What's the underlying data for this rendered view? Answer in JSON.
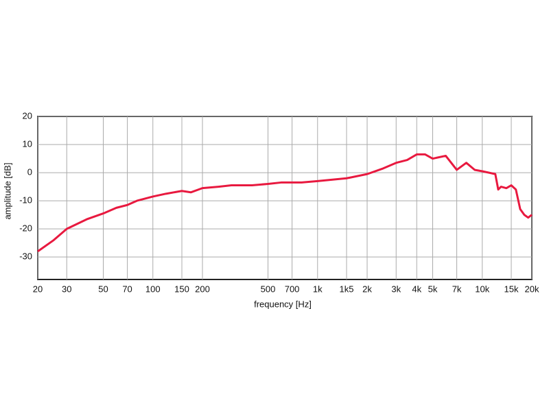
{
  "chart_data": {
    "type": "line",
    "x_label": "frequency [Hz]",
    "y_label": "amplitude [dB]",
    "x_scale": "log",
    "grid": true,
    "x": [
      20,
      25,
      30,
      40,
      50,
      60,
      70,
      80,
      100,
      120,
      150,
      170,
      200,
      250,
      300,
      400,
      500,
      600,
      800,
      1000,
      1500,
      2000,
      2500,
      3000,
      3500,
      4000,
      4500,
      5000,
      6000,
      7000,
      8000,
      9000,
      10000,
      12000,
      12500,
      13000,
      14000,
      15000,
      16000,
      17000,
      18000,
      19000,
      20000
    ],
    "series": [
      {
        "name": "amplitude",
        "color": "#e8193f",
        "values": [
          -28,
          -24,
          -20,
          -16.5,
          -14.5,
          -12.5,
          -11.5,
          -10,
          -8.5,
          -7.5,
          -6.5,
          -7,
          -5.5,
          -5,
          -4.5,
          -4.5,
          -4,
          -3.5,
          -3.5,
          -3,
          -2,
          -0.5,
          1.5,
          3.5,
          4.5,
          6.5,
          6.5,
          5,
          6,
          1,
          3.5,
          1,
          0.5,
          -0.5,
          -6,
          -5,
          -5.5,
          -4.5,
          -6,
          -13,
          -15,
          -16,
          -15
        ]
      }
    ],
    "xlim": [
      20,
      20000
    ],
    "ylim": [
      -38,
      20
    ],
    "xticks": [
      20,
      30,
      50,
      70,
      100,
      150,
      200,
      500,
      700,
      {
        "value": 1000,
        "label": "1k"
      },
      {
        "value": 1500,
        "label": "1k5"
      },
      {
        "value": 2000,
        "label": "2k"
      },
      {
        "value": 3000,
        "label": "3k"
      },
      {
        "value": 4000,
        "label": "4k"
      },
      {
        "value": 5000,
        "label": "5k"
      },
      {
        "value": 7000,
        "label": "7k"
      },
      {
        "value": 10000,
        "label": "10k"
      },
      {
        "value": 15000,
        "label": "15k"
      },
      {
        "value": 20000,
        "label": "20k"
      }
    ],
    "yticks": [
      -30,
      -20,
      -10,
      0,
      10,
      20
    ]
  }
}
